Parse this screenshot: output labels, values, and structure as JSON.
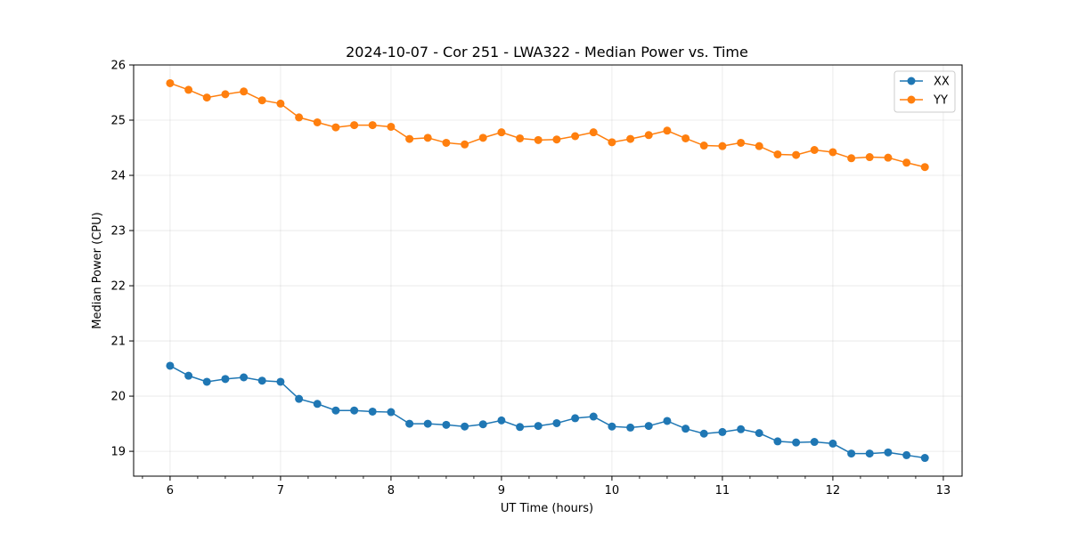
{
  "chart_data": {
    "type": "line",
    "title": "2024-10-07 - Cor 251 - LWA322 - Median Power vs. Time",
    "xlabel": "UT Time (hours)",
    "ylabel": "Median Power (CPU)",
    "xlim": [
      5.67,
      13.17
    ],
    "ylim": [
      18.55,
      26.0
    ],
    "xticks": [
      6,
      7,
      8,
      9,
      10,
      11,
      12,
      13
    ],
    "yticks": [
      19,
      20,
      21,
      22,
      23,
      24,
      25,
      26
    ],
    "grid": true,
    "legend_position": "top-right",
    "x": [
      6.0,
      6.167,
      6.333,
      6.5,
      6.667,
      6.833,
      7.0,
      7.167,
      7.333,
      7.5,
      7.667,
      7.833,
      8.0,
      8.167,
      8.333,
      8.5,
      8.667,
      8.833,
      9.0,
      9.167,
      9.333,
      9.5,
      9.667,
      9.833,
      10.0,
      10.167,
      10.333,
      10.5,
      10.667,
      10.833,
      11.0,
      11.167,
      11.333,
      11.5,
      11.667,
      11.833,
      12.0,
      12.167,
      12.333,
      12.5,
      12.667,
      12.833
    ],
    "series": [
      {
        "name": "XX",
        "color": "#1f77b4",
        "values": [
          20.55,
          20.37,
          20.26,
          20.31,
          20.34,
          20.28,
          20.26,
          19.95,
          19.86,
          19.74,
          19.74,
          19.72,
          19.71,
          19.5,
          19.5,
          19.48,
          19.45,
          19.49,
          19.56,
          19.44,
          19.46,
          19.51,
          19.6,
          19.63,
          19.45,
          19.43,
          19.46,
          19.55,
          19.41,
          19.32,
          19.35,
          19.4,
          19.33,
          19.18,
          19.16,
          19.17,
          19.14,
          18.96,
          18.96,
          18.98,
          18.93,
          18.88
        ]
      },
      {
        "name": "YY",
        "color": "#ff7f0e",
        "values": [
          25.67,
          25.55,
          25.41,
          25.47,
          25.52,
          25.36,
          25.3,
          25.05,
          24.96,
          24.87,
          24.91,
          24.91,
          24.88,
          24.66,
          24.68,
          24.59,
          24.56,
          24.68,
          24.78,
          24.67,
          24.64,
          24.65,
          24.71,
          24.78,
          24.6,
          24.66,
          24.73,
          24.81,
          24.67,
          24.54,
          24.53,
          24.59,
          24.53,
          24.38,
          24.37,
          24.46,
          24.42,
          24.31,
          24.33,
          24.32,
          24.23,
          24.15
        ]
      }
    ]
  }
}
